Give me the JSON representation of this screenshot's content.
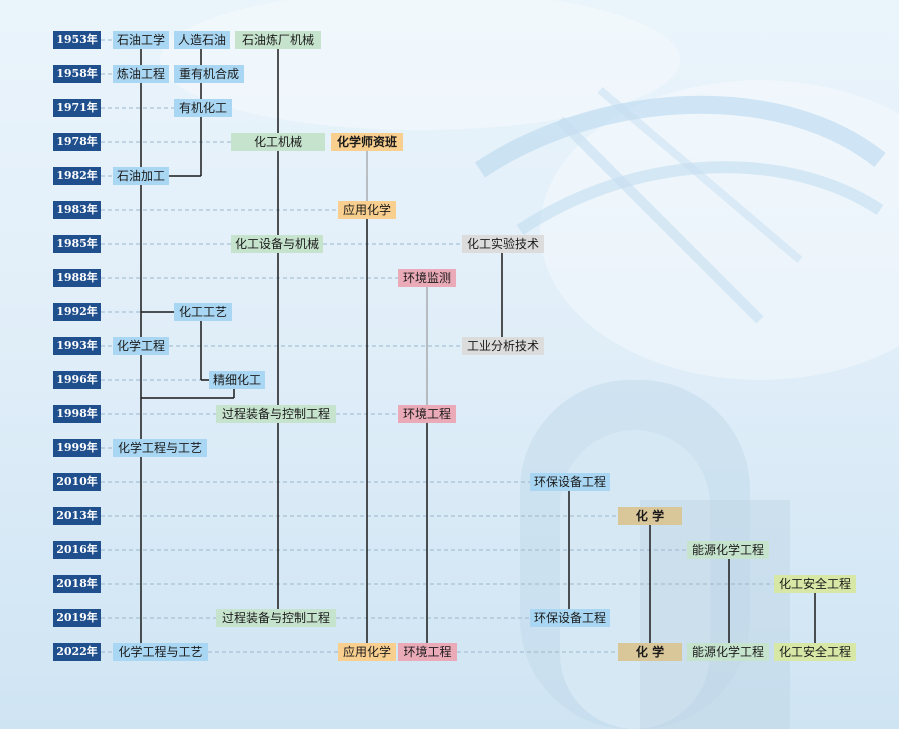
{
  "years": [
    "1953年",
    "1958年",
    "1971年",
    "1978年",
    "1982年",
    "1983年",
    "1985年",
    "1988年",
    "1992年",
    "1993年",
    "1996年",
    "1998年",
    "1999年",
    "2010年",
    "2013年",
    "2016年",
    "2018年",
    "2019年",
    "2022年"
  ],
  "majors": {
    "y1953": {
      "shiyou_gongxue": "石油工学",
      "renzao_shiyou": "人造石油",
      "shiyou_lianchang": "石油炼厂机械"
    },
    "y1958": {
      "lianyou": "炼油工程",
      "zhongyouji": "重有机合成"
    },
    "y1971": {
      "youjihuagong": "有机化工"
    },
    "y1978": {
      "huagongjixie": "化工机械",
      "shiziban": "化学师资班"
    },
    "y1982": {
      "shiyoujiagong": "石油加工"
    },
    "y1983": {
      "yingyonghuaxue": "应用化学"
    },
    "y1985": {
      "shebei": "化工设备与机械",
      "shiyanjishu": "化工实验技术"
    },
    "y1988": {
      "jiance": "环境监测"
    },
    "y1992": {
      "gongyi": "化工工艺"
    },
    "y1993": {
      "huaxuegongcheng": "化学工程",
      "fenxi": "工业分析技术"
    },
    "y1996": {
      "jingxi": "精细化工"
    },
    "y1998": {
      "guocheng": "过程装备与控制工程",
      "huanjing": "环境工程"
    },
    "y1999": {
      "hxgcgy": "化学工程与工艺"
    },
    "y2010": {
      "huanbao": "环保设备工程"
    },
    "y2013": {
      "huaxue": "化 学"
    },
    "y2016": {
      "nengyuan": "能源化学工程"
    },
    "y2018": {
      "anquan": "化工安全工程"
    },
    "y2019": {
      "guocheng": "过程装备与控制工程",
      "huanbao": "环保设备工程"
    },
    "y2022": {
      "hxgcgy": "化学工程与工艺",
      "yingyong": "应用化学",
      "huanjing": "环境工程",
      "huaxue": "化 学",
      "nengyuan": "能源化学工程",
      "anquan": "化工安全工程"
    }
  },
  "colors": {
    "year_bg": "#1f4f8c",
    "blue": "#a9d7f3",
    "green": "#c6e3cd",
    "orange": "#f8cf8f",
    "pink": "#eaaab7",
    "gray": "#dcdcdc",
    "tan": "#d9c79a",
    "yellow_green": "#d7e7a5"
  }
}
